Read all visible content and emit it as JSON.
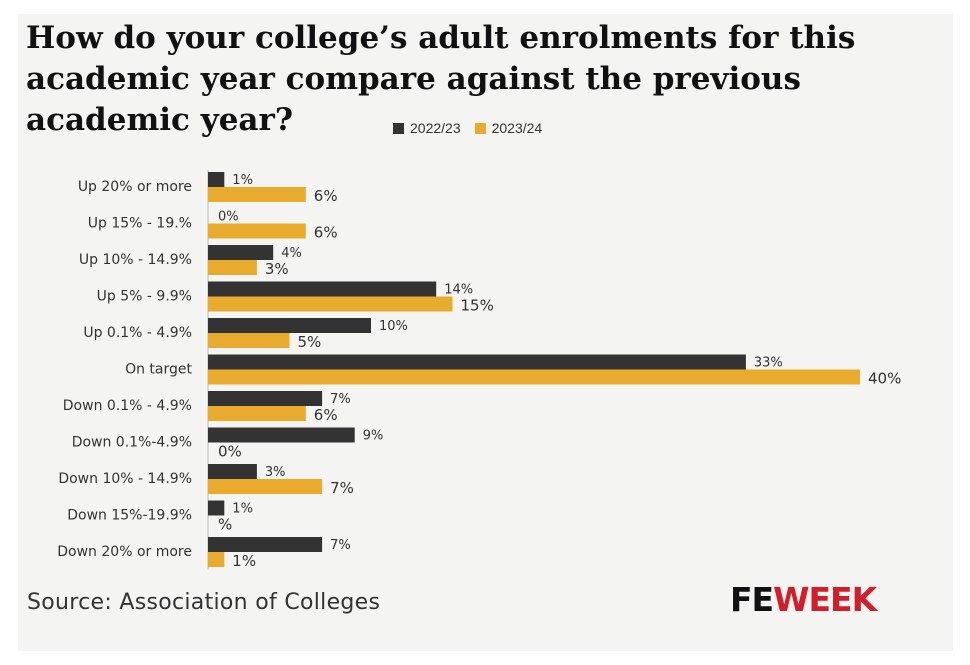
{
  "chart_data": {
    "type": "bar",
    "orientation": "horizontal",
    "title": "How do your college’s adult enrolments for this academic year compare against the previous academic year?",
    "categories": [
      "Up 20% or more",
      "Up 15% - 19.%",
      "Up 10% - 14.9%",
      "Up 5% - 9.9%",
      "Up 0.1% - 4.9%",
      "On target",
      "Down 0.1% - 4.9%",
      "Down 0.1%-4.9%",
      "Down 10% - 14.9%",
      "Down 15%-19.9%",
      "Down 20% or more"
    ],
    "series": [
      {
        "name": "2022/23",
        "color": "#333333",
        "values": [
          1,
          0,
          4,
          14,
          10,
          33,
          7,
          9,
          3,
          1,
          7
        ],
        "labels": [
          "1%",
          "0%",
          "4%",
          "14%",
          "10%",
          "33%",
          "7%",
          "9%",
          "3%",
          "1%",
          "7%"
        ]
      },
      {
        "name": "2023/24",
        "color": "#e8ab2e",
        "values": [
          6,
          6,
          3,
          15,
          5,
          40,
          6,
          0,
          7,
          0,
          1
        ],
        "labels": [
          "6%",
          "6%",
          "3%",
          "15%",
          "5%",
          "40%",
          "6%",
          "0%",
          "7%",
          "%",
          "1%"
        ]
      }
    ],
    "xlim": [
      0,
      40
    ],
    "grid": false,
    "legend_position": "top-center"
  },
  "source": "Source: Association of Colleges",
  "logo": {
    "fe": "FE",
    "week": "WEEK"
  }
}
